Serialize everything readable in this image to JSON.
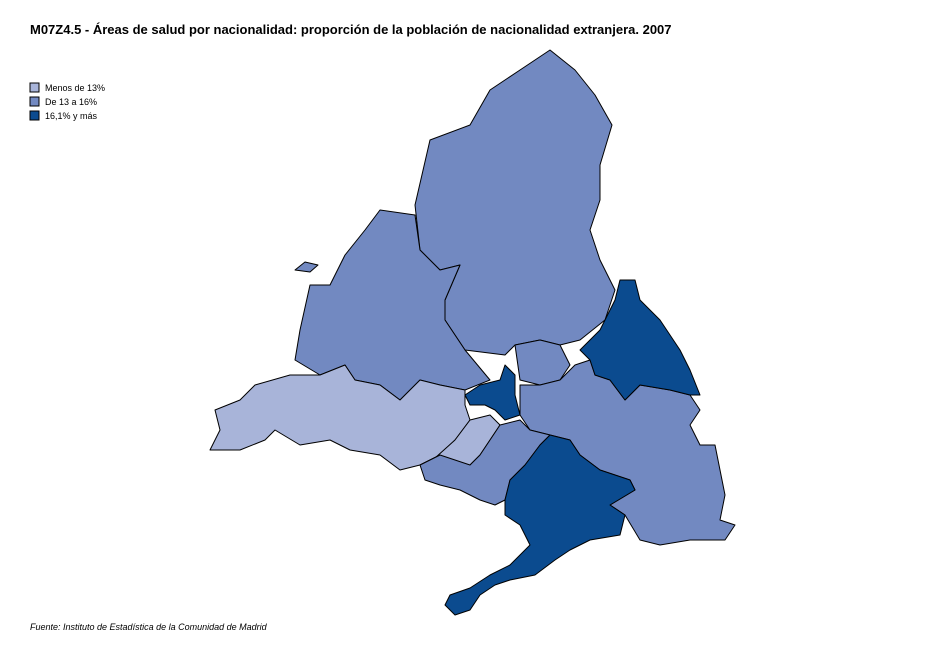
{
  "header": {
    "title": "M07Z4.5 - Áreas de salud por nacionalidad: proporción de la población de nacionalidad extranjera. 2007"
  },
  "legend": [
    {
      "label": "Menos de 13%",
      "color": "#a8b4d9"
    },
    {
      "label": "De 13 a 16%",
      "color": "#7289c1"
    },
    {
      "label": "16,1% y más",
      "color": "#0b4b8f"
    }
  ],
  "footer": {
    "source": "Fuente: Instituto de Estadística de la Comunidad de Madrid"
  }
}
